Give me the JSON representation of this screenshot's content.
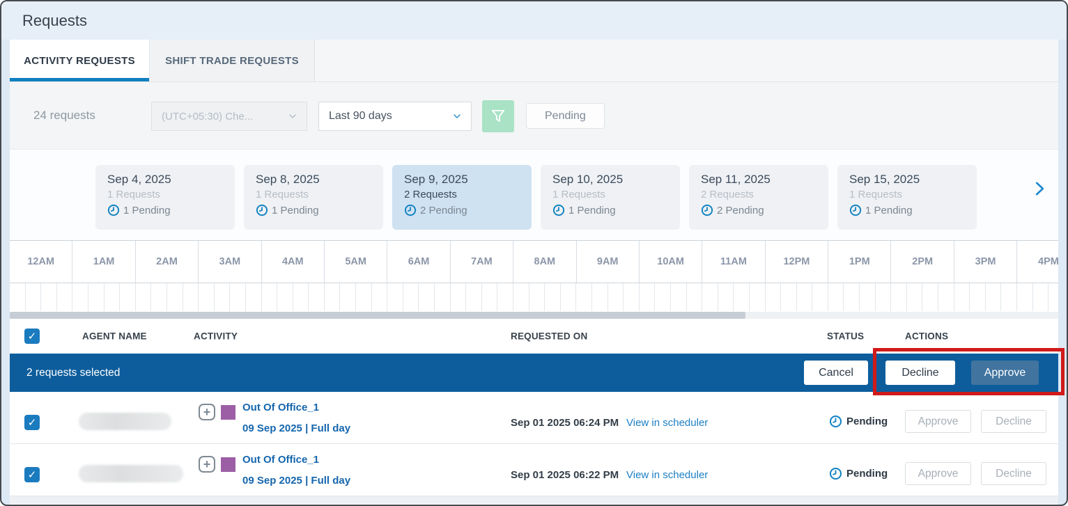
{
  "window": {
    "title": "Requests"
  },
  "tabs": {
    "activity": {
      "label": "ACTIVITY REQUESTS",
      "active": true
    },
    "shift_trade": {
      "label": "SHIFT TRADE REQUESTS",
      "active": false
    }
  },
  "filter_bar": {
    "count": "24 requests",
    "timezone_dropdown": {
      "value": "(UTC+05:30) Che...",
      "disabled": true,
      "icon": "chevron-down-icon"
    },
    "range_dropdown": {
      "value": "Last 90 days",
      "disabled": false,
      "icon": "chevron-down-icon"
    },
    "filter_button": {
      "icon": "funnel-icon"
    },
    "status_chip": "Pending"
  },
  "date_carousel": {
    "cards": [
      {
        "date": "Sep 4, 2025",
        "requests": "1 Requests",
        "pending": "1 Pending",
        "selected": false
      },
      {
        "date": "Sep 8, 2025",
        "requests": "1 Requests",
        "pending": "1 Pending",
        "selected": false
      },
      {
        "date": "Sep 9, 2025",
        "requests": "2 Requests",
        "pending": "2 Pending",
        "selected": true
      },
      {
        "date": "Sep 10, 2025",
        "requests": "1 Requests",
        "pending": "1 Pending",
        "selected": false
      },
      {
        "date": "Sep 11, 2025",
        "requests": "2 Requests",
        "pending": "2 Pending",
        "selected": false
      },
      {
        "date": "Sep 15, 2025",
        "requests": "1 Requests",
        "pending": "1 Pending",
        "selected": false
      }
    ],
    "next_icon": "chevron-right-icon"
  },
  "timeline": {
    "hours": [
      "12AM",
      "1AM",
      "2AM",
      "3AM",
      "4AM",
      "5AM",
      "6AM",
      "7AM",
      "8AM",
      "9AM",
      "10AM",
      "11AM",
      "12PM",
      "1PM",
      "2PM",
      "3PM",
      "4PM"
    ],
    "ticks_per_hour": 4
  },
  "table": {
    "header": {
      "agent": "AGENT NAME",
      "activity": "ACTIVITY",
      "requested_on": "REQUESTED ON",
      "status": "STATUS",
      "actions": "ACTIONS"
    },
    "selection_bar": {
      "text": "2 requests selected",
      "cancel": "Cancel",
      "decline": "Decline",
      "approve": "Approve"
    },
    "rows": [
      {
        "agent_redacted": true,
        "activity_name": "Out Of Office_1",
        "activity_date": "09 Sep 2025 | Full day",
        "requested_on": "Sep 01 2025 06:24 PM",
        "scheduler_link": "View in scheduler",
        "status": "Pending",
        "approve": "Approve",
        "decline": "Decline"
      },
      {
        "agent_redacted": true,
        "activity_name": "Out Of Office_1",
        "activity_date": "09 Sep 2025 | Full day",
        "requested_on": "Sep 01 2025 06:22 PM",
        "scheduler_link": "View in scheduler",
        "status": "Pending",
        "approve": "Approve",
        "decline": "Decline"
      }
    ]
  },
  "annotation": {
    "type": "red-highlight-box",
    "color": "#d11a1a"
  },
  "colors": {
    "accent_blue": "#117fc0",
    "selection_bar_blue": "#0d5d9c",
    "approve_button_blue": "#41749f",
    "filter_button_green": "#a9e2c5",
    "activity_purple": "#9c5fa5",
    "selected_card_blue": "#cfe2f2",
    "header_bg_blue": "#e6eef7",
    "annotation_red": "#d11a1a",
    "clock_icon_blue": "#1383c2"
  }
}
